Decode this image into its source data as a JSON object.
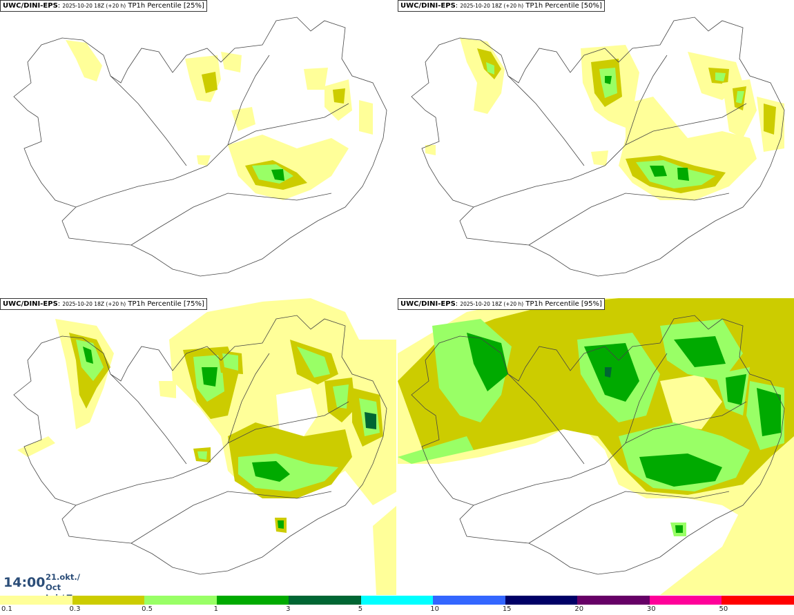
{
  "panels": [
    {
      "model": "UWC/DINI-EPS",
      "run": "2025-10-20 18Z (+20 h)",
      "product": "TP1h Percentile [25%]"
    },
    {
      "model": "UWC/DINI-EPS",
      "run": "2025-10-20 18Z (+20 h)",
      "product": "TP1h Percentile [50%]"
    },
    {
      "model": "UWC/DINI-EPS",
      "run": "2025-10-20 18Z (+20 h)",
      "product": "TP1h Percentile [75%]"
    },
    {
      "model": "UWC/DINI-EPS",
      "run": "2025-10-20 18Z (+20 h)",
      "product": "TP1h Percentile [95%]"
    }
  ],
  "valid": {
    "time": "14:00",
    "date_line1": "21.okt./ Oct",
    "date_line2": "Þri./ Tue"
  },
  "legend": {
    "colors": [
      "#ffff99",
      "#cccc00",
      "#99ff66",
      "#00aa00",
      "#006633",
      "#00ffff",
      "#3366ff",
      "#000066",
      "#660066",
      "#ff0099",
      "#ff0000"
    ],
    "labels": [
      "0.1",
      "0.3",
      "0.5",
      "1",
      "3",
      "5",
      "10",
      "15",
      "20",
      "30",
      "50"
    ]
  }
}
